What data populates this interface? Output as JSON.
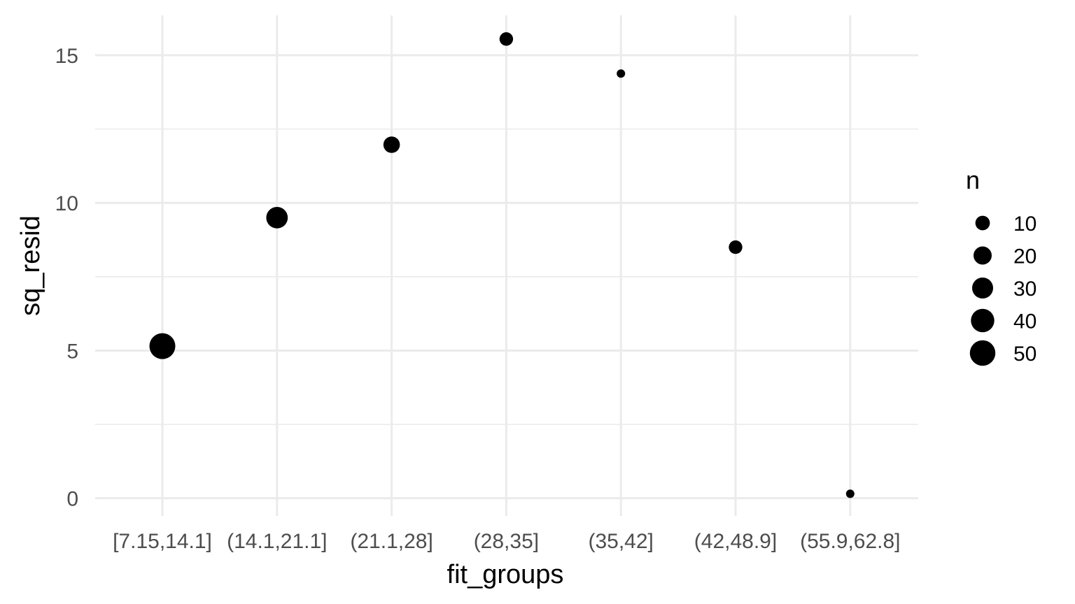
{
  "chart_data": {
    "type": "scatter",
    "x_type": "categorical",
    "categories": [
      "[7.15,14.1]",
      "(14.1,21.1]",
      "(21.1,28]",
      "(28,35]",
      "(35,42]",
      "(42,48.9]",
      "(55.9,62.8]"
    ],
    "points": [
      {
        "x": "[7.15,14.1]",
        "y": 5.15,
        "n": 52
      },
      {
        "x": "(14.1,21.1]",
        "y": 9.5,
        "n": 32
      },
      {
        "x": "(21.1,28]",
        "y": 11.97,
        "n": 15
      },
      {
        "x": "(28,35]",
        "y": 15.55,
        "n": 8
      },
      {
        "x": "(35,42]",
        "y": 14.38,
        "n": 1
      },
      {
        "x": "(42,48.9]",
        "y": 8.5,
        "n": 8
      },
      {
        "x": "(55.9,62.8]",
        "y": 0.15,
        "n": 1
      }
    ],
    "xlabel": "fit_groups",
    "ylabel": "sq_resid",
    "ylim": [
      -0.6,
      16.35
    ],
    "yticks": [
      0,
      5,
      10,
      15
    ],
    "grid": true,
    "legend": {
      "title": "n",
      "position": "right",
      "entries": [
        10,
        20,
        30,
        40,
        50
      ]
    },
    "colors": {
      "point": "#000000",
      "grid": "#ebebeb",
      "tick_text": "#4d4d4d"
    }
  }
}
